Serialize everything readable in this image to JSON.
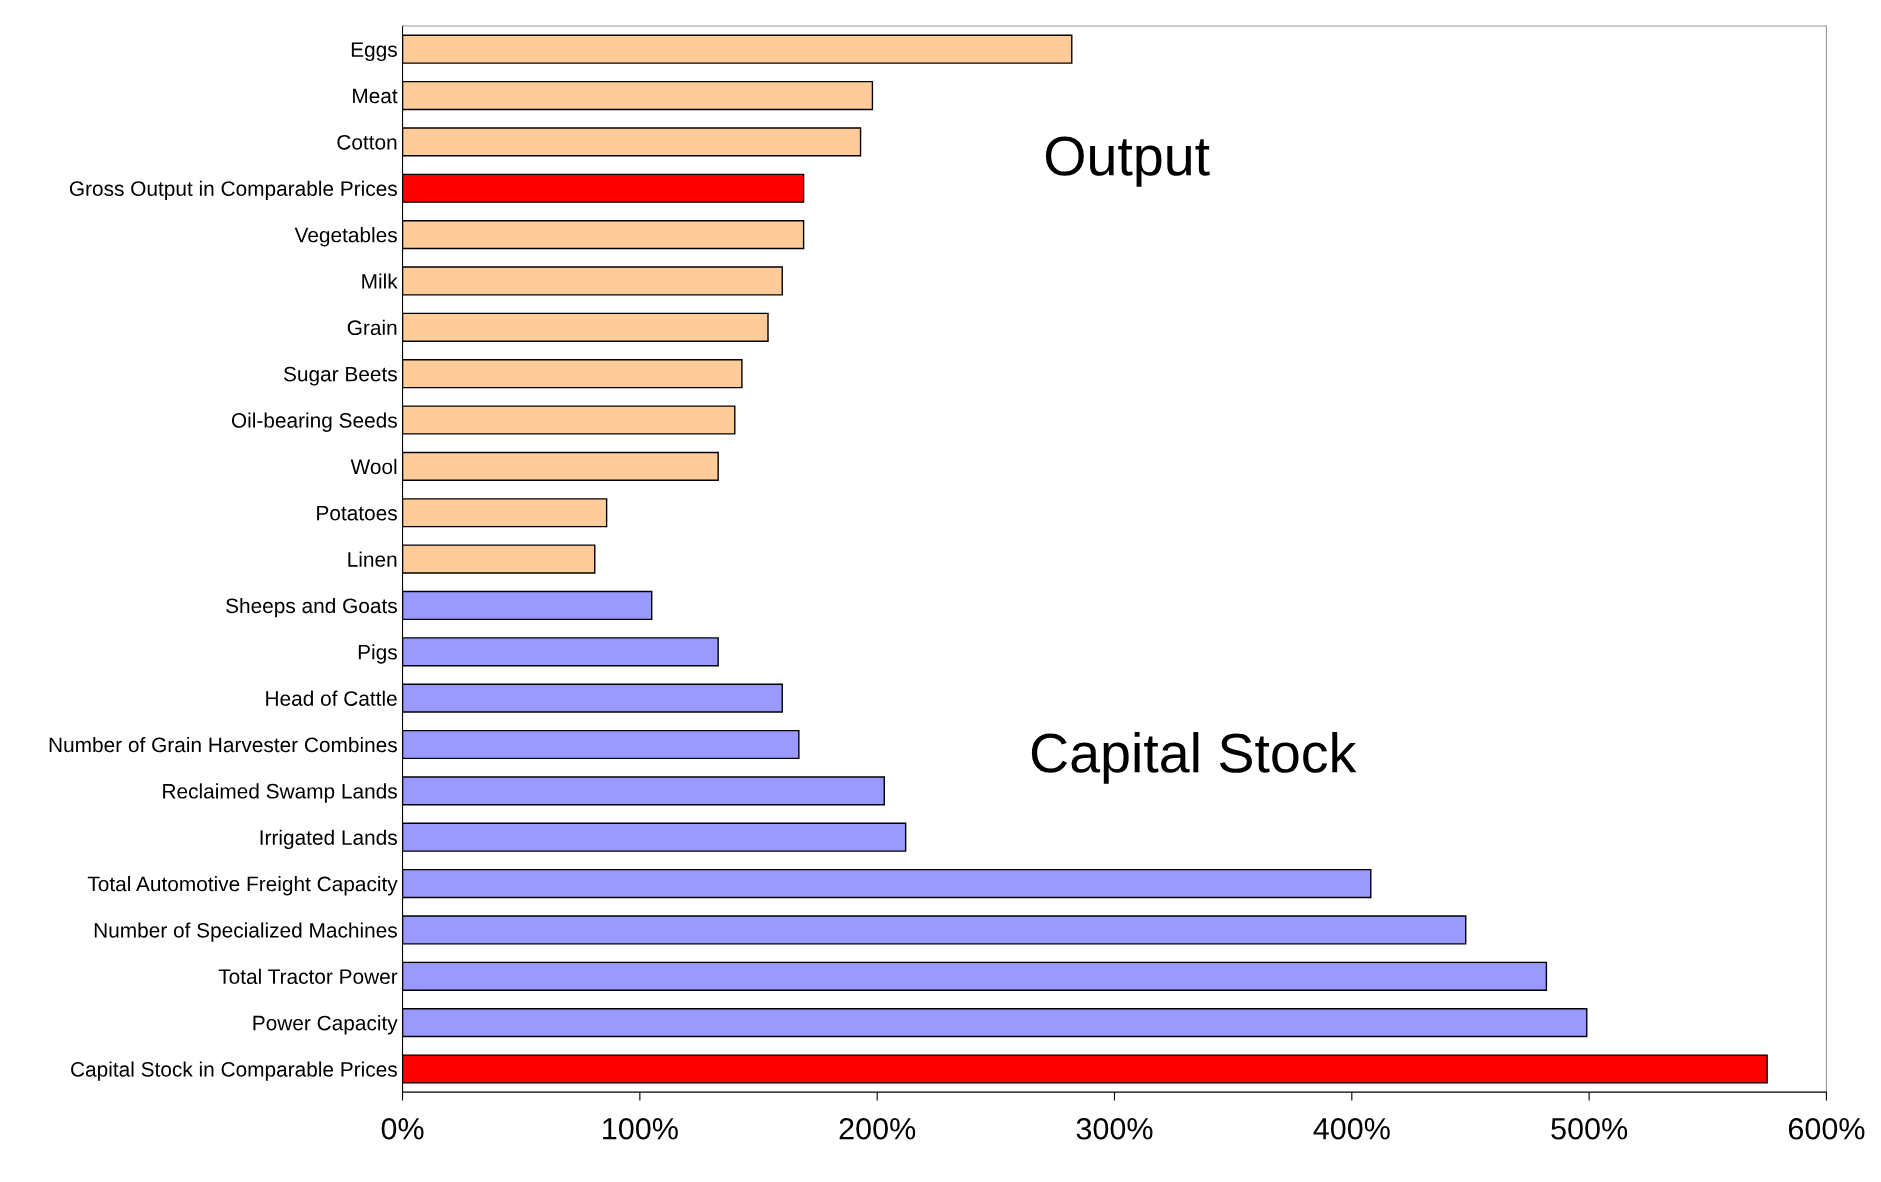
{
  "chart_data": {
    "type": "bar",
    "orientation": "horizontal",
    "categories": [
      "Eggs",
      "Meat",
      "Cotton",
      "Gross Output in Comparable Prices",
      "Vegetables",
      "Milk",
      "Grain",
      "Sugar Beets",
      "Oil-bearing Seeds",
      "Wool",
      "Potatoes",
      "Linen",
      "Sheeps and Goats",
      "Pigs",
      "Head of Cattle",
      "Number of Grain Harvester Combines",
      "Reclaimed Swamp Lands",
      "Irrigated Lands",
      "Total Automotive Freight Capacity",
      "Number of Specialized Machines",
      "Total Tractor Power",
      "Power Capacity",
      "Capital Stock in Comparable Prices"
    ],
    "values": [
      282,
      198,
      193,
      169,
      169,
      160,
      154,
      143,
      140,
      133,
      86,
      81,
      105,
      133,
      160,
      167,
      203,
      212,
      408,
      448,
      482,
      499,
      575
    ],
    "colors": [
      "#ffcc99",
      "#ffcc99",
      "#ffcc99",
      "#ff0000",
      "#ffcc99",
      "#ffcc99",
      "#ffcc99",
      "#ffcc99",
      "#ffcc99",
      "#ffcc99",
      "#ffcc99",
      "#ffcc99",
      "#9999ff",
      "#9999ff",
      "#9999ff",
      "#9999ff",
      "#9999ff",
      "#9999ff",
      "#9999ff",
      "#9999ff",
      "#9999ff",
      "#9999ff",
      "#ff0000"
    ],
    "xlim": [
      0,
      600
    ],
    "xticks": [
      {
        "value": 0,
        "label": "0%"
      },
      {
        "value": 100,
        "label": "100%"
      },
      {
        "value": 200,
        "label": "200%"
      },
      {
        "value": 300,
        "label": "300%"
      },
      {
        "value": 400,
        "label": "400%"
      },
      {
        "value": 500,
        "label": "500%"
      },
      {
        "value": 600,
        "label": "600%"
      }
    ],
    "annotations": [
      "Output",
      "Capital Stock"
    ],
    "grid": false,
    "legend": false
  }
}
